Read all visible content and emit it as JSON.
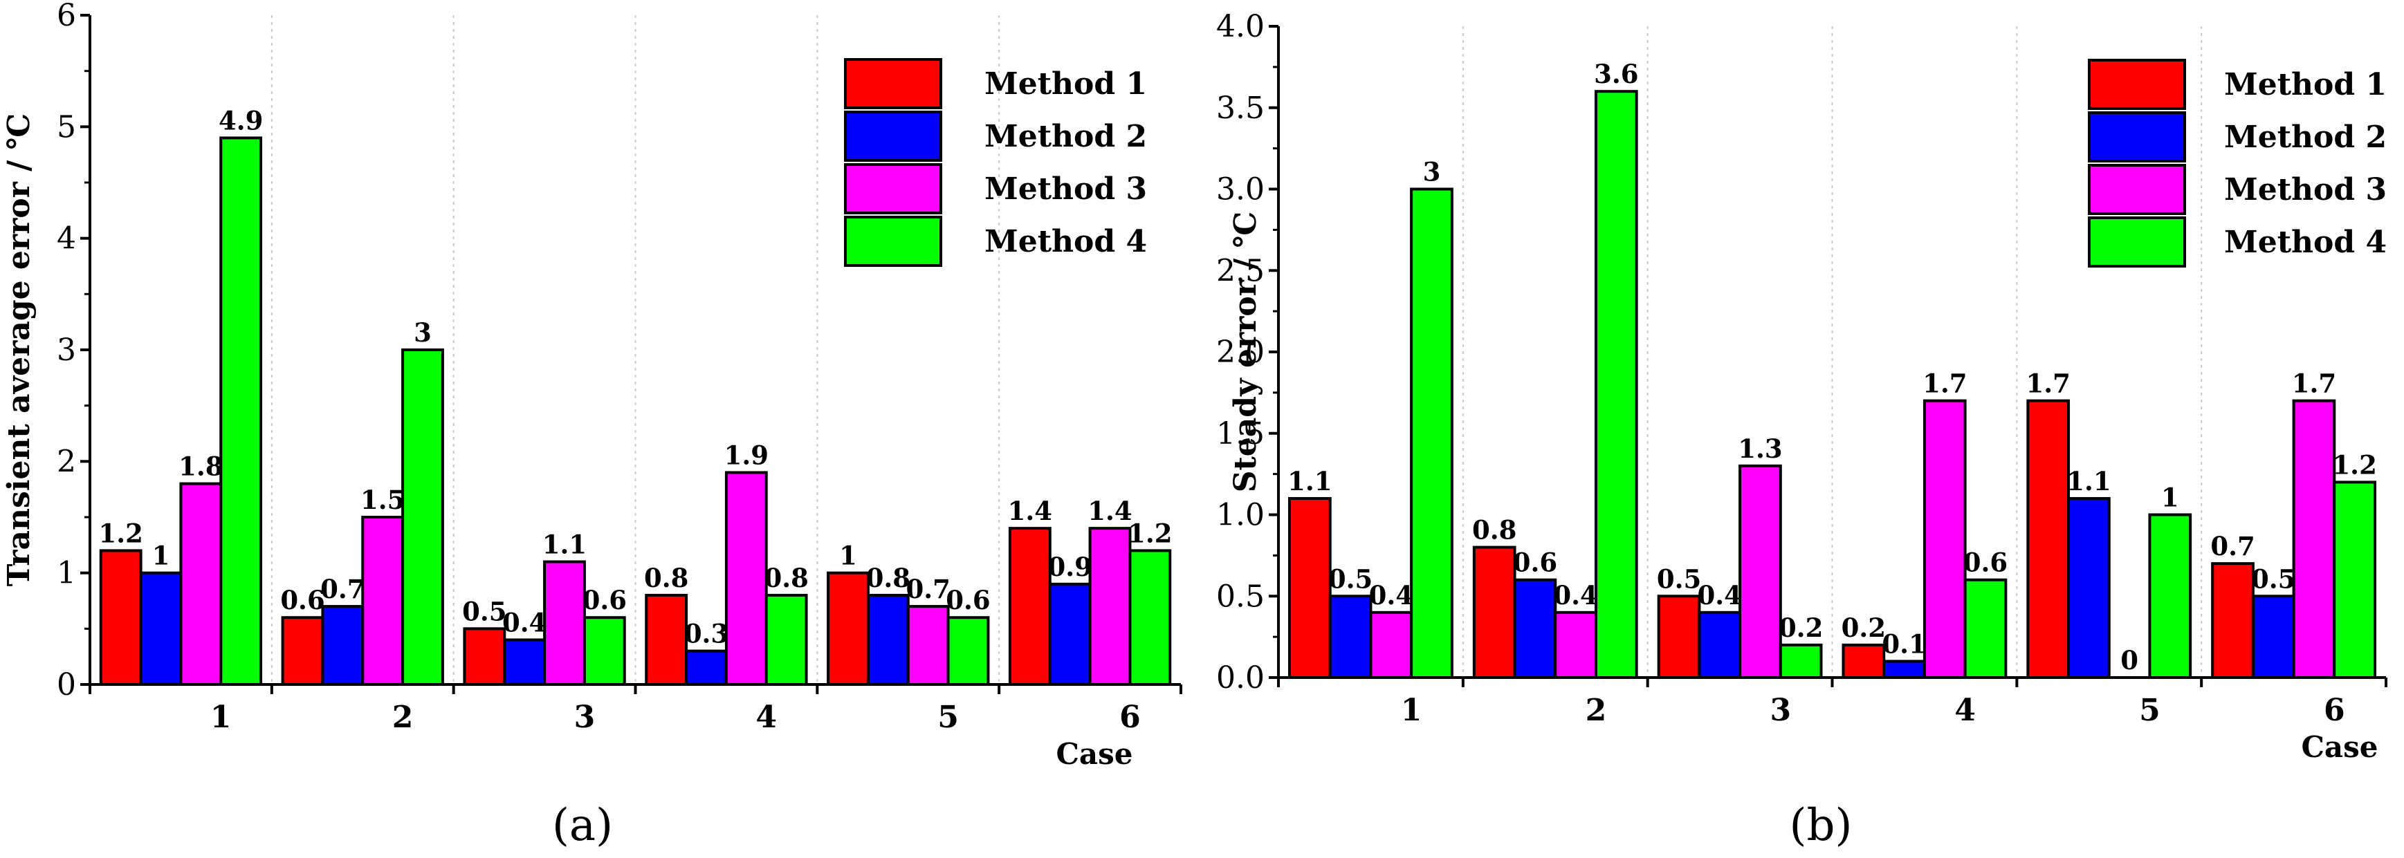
{
  "chart_data": [
    {
      "type": "bar",
      "panel_label": "(a)",
      "ylabel": "Transient average error / ℃",
      "xlabel": "Case",
      "categories": [
        "1",
        "2",
        "3",
        "4",
        "5",
        "6"
      ],
      "ylim": [
        0,
        6
      ],
      "yticks": [
        "0",
        "1",
        "2",
        "3",
        "4",
        "5",
        "6"
      ],
      "grid": "vertical dotted",
      "legend_position": "top-right",
      "series": [
        {
          "name": "Method 1",
          "color": "#ff0000",
          "values": [
            1.2,
            0.6,
            0.5,
            0.8,
            1,
            1.4
          ],
          "labels": [
            "1.2",
            "0.6",
            "0.5",
            "0.8",
            "1",
            "1.4"
          ]
        },
        {
          "name": "Method 2",
          "color": "#0000ff",
          "values": [
            1,
            0.7,
            0.4,
            0.3,
            0.8,
            0.9
          ],
          "labels": [
            "1",
            "0.7",
            "0.4",
            "0.3",
            "0.8",
            "0.9"
          ]
        },
        {
          "name": "Method 3",
          "color": "#ff00ff",
          "values": [
            1.8,
            1.5,
            1.1,
            1.9,
            0.7,
            1.4
          ],
          "labels": [
            "1.8",
            "1.5",
            "1.1",
            "1.9",
            "0.7",
            "1.4"
          ]
        },
        {
          "name": "Method 4",
          "color": "#00ff00",
          "values": [
            4.9,
            3,
            0.6,
            0.8,
            0.6,
            1.2
          ],
          "labels": [
            "4.9",
            "3",
            "0.6",
            "0.8",
            "0.6",
            "1.2"
          ]
        }
      ]
    },
    {
      "type": "bar",
      "panel_label": "(b)",
      "ylabel": "Steady error / ℃",
      "xlabel": "Case",
      "categories": [
        "1",
        "2",
        "3",
        "4",
        "5",
        "6"
      ],
      "ylim": [
        0,
        4
      ],
      "yticks": [
        "0.0",
        "0.5",
        "1.0",
        "1.5",
        "2.0",
        "2.5",
        "3.0",
        "3.5",
        "4.0"
      ],
      "grid": "vertical dotted",
      "legend_position": "top-right",
      "series": [
        {
          "name": "Method 1",
          "color": "#ff0000",
          "values": [
            1.1,
            0.8,
            0.5,
            0.2,
            1.7,
            0.7
          ],
          "labels": [
            "1.1",
            "0.8",
            "0.5",
            "0.2",
            "1.7",
            "0.7"
          ]
        },
        {
          "name": "Method 2",
          "color": "#0000ff",
          "values": [
            0.5,
            0.6,
            0.4,
            0.1,
            1.1,
            0.5
          ],
          "labels": [
            "0.5",
            "0.6",
            "0.4",
            "0.1",
            "1.1",
            "0.5"
          ]
        },
        {
          "name": "Method 3",
          "color": "#ff00ff",
          "values": [
            0.4,
            0.4,
            1.3,
            1.7,
            0,
            1.7
          ],
          "labels": [
            "0.4",
            "0.4",
            "1.3",
            "1.7",
            "0",
            "1.7"
          ]
        },
        {
          "name": "Method 4",
          "color": "#00ff00",
          "values": [
            3,
            3.6,
            0.2,
            0.6,
            1,
            1.2
          ],
          "labels": [
            "3",
            "3.6",
            "0.2",
            "0.6",
            "1",
            "1.2"
          ]
        }
      ]
    }
  ]
}
